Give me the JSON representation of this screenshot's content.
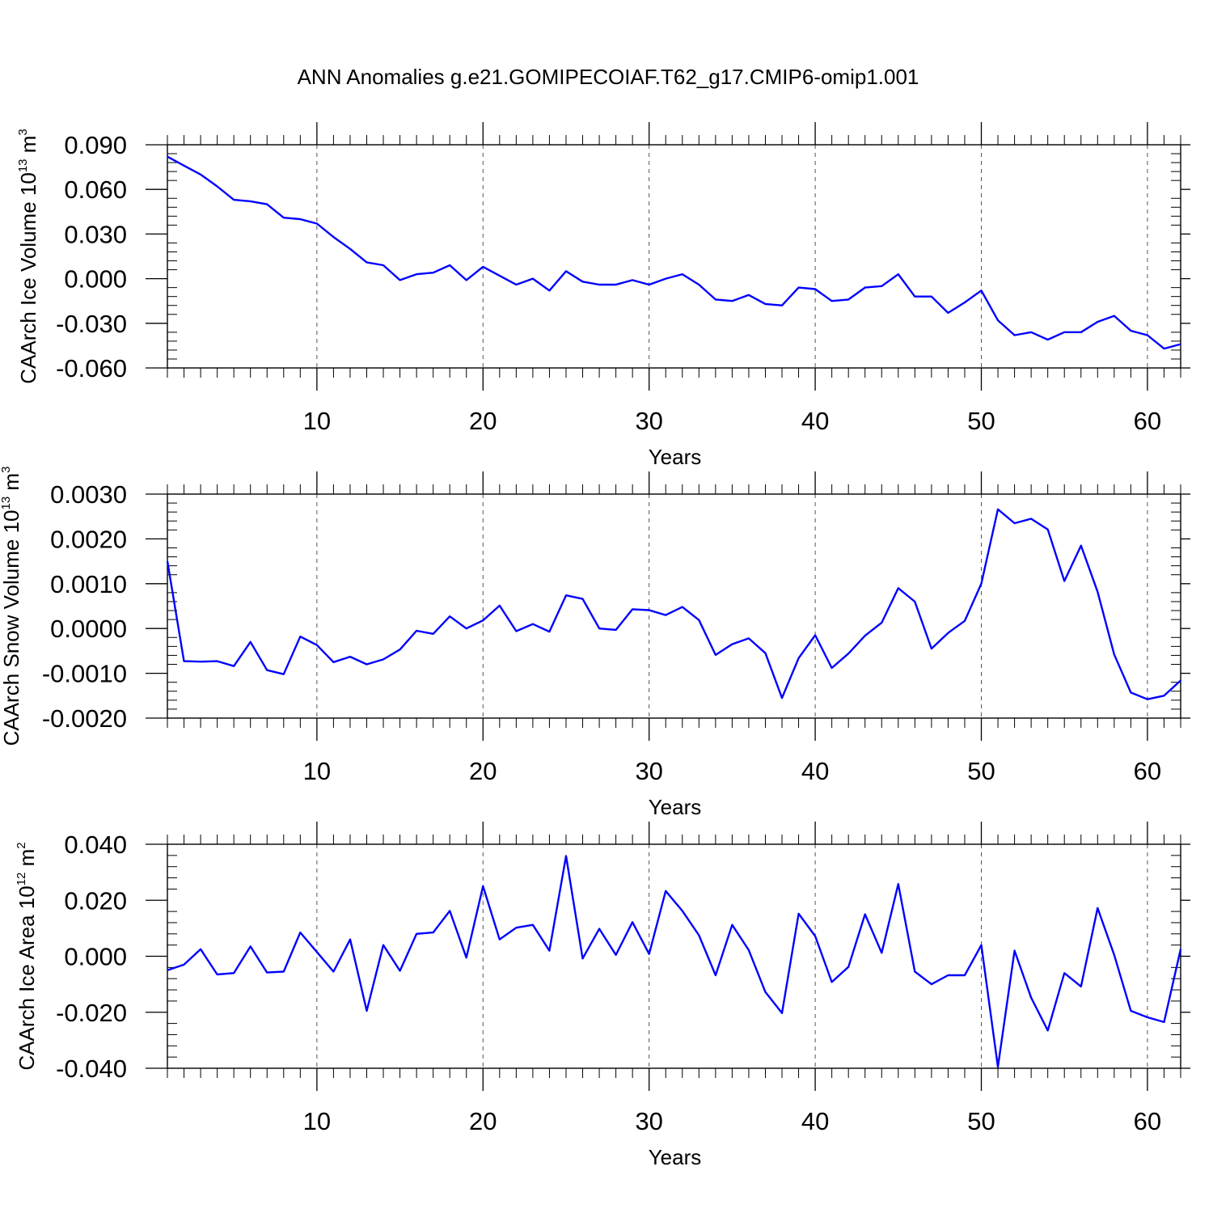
{
  "title": "ANN Anomalies g.e21.GOMIPECOIAF.T62_g17.CMIP6-omip1.001",
  "colors": {
    "line": "#0000ff",
    "axis": "#000000",
    "grid": "#555555",
    "background": "#ffffff"
  },
  "chart_data": [
    {
      "type": "line",
      "ylabel": "CAArch Ice Volume 10",
      "ylabel_exponent": "13",
      "ylabel_unit": " m",
      "ylabel_unit_power": "3",
      "xlabel": "Years",
      "xlim": [
        1,
        62
      ],
      "ylim": [
        -0.06,
        0.09
      ],
      "x_ticks": [
        10,
        20,
        30,
        40,
        50,
        60
      ],
      "x_tick_labels": [
        "10",
        "20",
        "30",
        "40",
        "50",
        "60"
      ],
      "y_ticks": [
        -0.06,
        -0.03,
        0.0,
        0.03,
        0.06,
        0.09
      ],
      "y_tick_labels": [
        "-0.060",
        "-0.030",
        "0.000",
        "0.030",
        "0.060",
        "0.090"
      ],
      "grid": "dashed vertical at major x ticks",
      "series": [
        {
          "name": "Ice Volume",
          "x_start": 1,
          "values": [
            0.082,
            0.076,
            0.07,
            0.062,
            0.053,
            0.052,
            0.05,
            0.041,
            0.04,
            0.037,
            0.028,
            0.02,
            0.011,
            0.009,
            -0.001,
            0.003,
            0.004,
            0.009,
            -0.001,
            0.008,
            0.002,
            -0.004,
            0.0,
            -0.008,
            0.005,
            -0.002,
            -0.004,
            -0.004,
            -0.001,
            -0.004,
            0.0,
            0.003,
            -0.004,
            -0.014,
            -0.015,
            -0.011,
            -0.017,
            -0.018,
            -0.006,
            -0.007,
            -0.015,
            -0.014,
            -0.006,
            -0.005,
            0.003,
            -0.012,
            -0.012,
            -0.023,
            -0.016,
            -0.008,
            -0.028,
            -0.038,
            -0.036,
            -0.041,
            -0.036,
            -0.036,
            -0.029,
            -0.025,
            -0.035,
            -0.038,
            -0.047,
            -0.044
          ]
        }
      ]
    },
    {
      "type": "line",
      "ylabel": "CAArch Snow Volume 10",
      "ylabel_exponent": "13",
      "ylabel_unit": " m",
      "ylabel_unit_power": "3",
      "xlabel": "Years",
      "xlim": [
        1,
        62
      ],
      "ylim": [
        -0.002,
        0.003
      ],
      "x_ticks": [
        10,
        20,
        30,
        40,
        50,
        60
      ],
      "x_tick_labels": [
        "10",
        "20",
        "30",
        "40",
        "50",
        "60"
      ],
      "y_ticks": [
        -0.002,
        -0.001,
        0.0,
        0.001,
        0.002,
        0.003
      ],
      "y_tick_labels": [
        "-0.0020",
        "-0.0010",
        "0.0000",
        "0.0010",
        "0.0020",
        "0.0030"
      ],
      "grid": "dashed vertical at major x ticks",
      "series": [
        {
          "name": "Snow Volume",
          "x_start": 1,
          "values": [
            0.0015,
            -0.00073,
            -0.00074,
            -0.00073,
            -0.00084,
            -0.0003,
            -0.00093,
            -0.00102,
            -0.00018,
            -0.00037,
            -0.00075,
            -0.00063,
            -0.0008,
            -0.00069,
            -0.00047,
            -5e-05,
            -0.00012,
            0.00027,
            0.0,
            0.00018,
            0.00051,
            -6e-05,
            0.0001,
            -7e-05,
            0.00074,
            0.00066,
            0.0,
            -3e-05,
            0.00043,
            0.00041,
            0.0003,
            0.00048,
            0.00019,
            -0.00059,
            -0.00035,
            -0.00022,
            -0.00055,
            -0.00155,
            -0.00066,
            -0.00015,
            -0.00088,
            -0.00056,
            -0.00016,
            0.00013,
            0.0009,
            0.0006,
            -0.00045,
            -0.0001,
            0.00017,
            0.001,
            0.00266,
            0.00235,
            0.00245,
            0.00221,
            0.00106,
            0.00185,
            0.00082,
            -0.00058,
            -0.00143,
            -0.00158,
            -0.0015,
            -0.00116
          ]
        }
      ]
    },
    {
      "type": "line",
      "ylabel": "CAArch Ice Area 10",
      "ylabel_exponent": "12",
      "ylabel_unit": " m",
      "ylabel_unit_power": "2",
      "xlabel": "Years",
      "xlim": [
        1,
        62
      ],
      "ylim": [
        -0.04,
        0.04
      ],
      "x_ticks": [
        10,
        20,
        30,
        40,
        50,
        60
      ],
      "x_tick_labels": [
        "10",
        "20",
        "30",
        "40",
        "50",
        "60"
      ],
      "y_ticks": [
        -0.04,
        -0.02,
        0.0,
        0.02,
        0.04
      ],
      "y_tick_labels": [
        "-0.040",
        "-0.020",
        "0.000",
        "0.020",
        "0.040"
      ],
      "grid": "dashed vertical at major x ticks",
      "series": [
        {
          "name": "Ice Area",
          "x_start": 1,
          "values": [
            -0.005,
            -0.003,
            0.0025,
            -0.0065,
            -0.006,
            0.0035,
            -0.0058,
            -0.0055,
            0.0085,
            0.0015,
            -0.0055,
            0.006,
            -0.0195,
            0.004,
            -0.0052,
            0.008,
            0.0085,
            0.0162,
            -0.0005,
            0.025,
            0.006,
            0.0102,
            0.0112,
            0.002,
            0.0358,
            -0.0008,
            0.0098,
            0.0005,
            0.0122,
            0.0008,
            0.0233,
            0.0162,
            0.0075,
            -0.0068,
            0.0112,
            0.0022,
            -0.0128,
            -0.0203,
            0.0152,
            0.0072,
            -0.0092,
            -0.0038,
            0.015,
            0.0012,
            0.0258,
            -0.0055,
            -0.01,
            -0.0068,
            -0.0068,
            0.004,
            -0.0395,
            0.002,
            -0.0148,
            -0.0265,
            -0.006,
            -0.0108,
            0.0172,
            0.0005,
            -0.0195,
            -0.0218,
            -0.0235,
            0.0025
          ]
        }
      ]
    }
  ]
}
